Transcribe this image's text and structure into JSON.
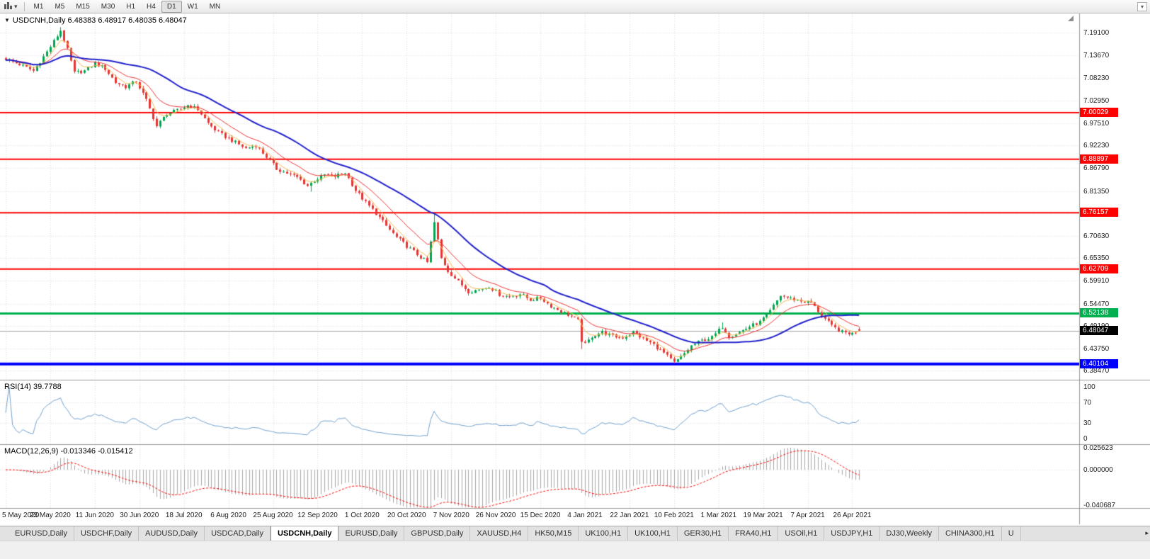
{
  "toolbar": {
    "timeframes": [
      "M1",
      "M5",
      "M15",
      "M30",
      "H1",
      "H4",
      "D1",
      "W1",
      "MN"
    ],
    "active_timeframe": "D1"
  },
  "chart": {
    "title": "USDCNH,Daily 6.48383 6.48917 6.48035 6.48047",
    "current_price": "6.48047",
    "y_ticks": [
      "7.19100",
      "7.13670",
      "7.08230",
      "7.02950",
      "6.97510",
      "6.92230",
      "6.86790",
      "6.81350",
      "6.76070",
      "6.70630",
      "6.65350",
      "6.59910",
      "6.54470",
      "6.49190",
      "6.43750",
      "6.38470"
    ],
    "x_labels": [
      "5 May 2020",
      "23 May 2020",
      "11 Jun 2020",
      "30 Jun 2020",
      "18 Jul 2020",
      "6 Aug 2020",
      "25 Aug 2020",
      "12 Sep 2020",
      "1 Oct 2020",
      "20 Oct 2020",
      "7 Nov 2020",
      "26 Nov 2020",
      "15 Dec 2020",
      "4 Jan 2021",
      "22 Jan 2021",
      "10 Feb 2021",
      "1 Mar 2021",
      "19 Mar 2021",
      "7 Apr 2021",
      "26 Apr 2021"
    ]
  },
  "indicators": {
    "rsi": {
      "label": "RSI(14) 39.7788",
      "period": 14,
      "value": "39.7788",
      "ticks": [
        "100",
        "70",
        "30",
        "0"
      ],
      "levels": [
        70,
        30
      ]
    },
    "macd": {
      "label": "MACD(12,26,9) -0.013346 -0.015412",
      "values": [
        "-0.013346",
        "-0.015412"
      ],
      "ticks": [
        {
          "text": "0.025623",
          "value": 0.025623
        },
        {
          "text": "0.000000",
          "value": 0
        },
        {
          "text": "-0.040687",
          "value": -0.040687
        }
      ]
    }
  },
  "chart_data": {
    "type": "candlestick",
    "symbol": "USDCNH",
    "timeframe": "Daily",
    "bar_count": 250,
    "price_axis_range": [
      6.365,
      7.235
    ],
    "rsi_range": [
      -12,
      112
    ],
    "macd_range": [
      -0.0445,
      0.0285
    ],
    "last_bar": {
      "open": 6.48383,
      "high": 6.48917,
      "low": 6.48035,
      "close": 6.48047
    },
    "close_anchors": [
      [
        0,
        7.128
      ],
      [
        4,
        7.115
      ],
      [
        8,
        7.1
      ],
      [
        12,
        7.145
      ],
      [
        16,
        7.196
      ],
      [
        18,
        7.15
      ],
      [
        20,
        7.095
      ],
      [
        23,
        7.1
      ],
      [
        26,
        7.118
      ],
      [
        29,
        7.105
      ],
      [
        32,
        7.072
      ],
      [
        35,
        7.062
      ],
      [
        38,
        7.075
      ],
      [
        41,
        7.03
      ],
      [
        44,
        6.968
      ],
      [
        47,
        6.998
      ],
      [
        50,
        7.005
      ],
      [
        53,
        7.018
      ],
      [
        56,
        7.008
      ],
      [
        59,
        6.975
      ],
      [
        62,
        6.952
      ],
      [
        66,
        6.934
      ],
      [
        70,
        6.915
      ],
      [
        73,
        6.922
      ],
      [
        76,
        6.895
      ],
      [
        79,
        6.866
      ],
      [
        82,
        6.856
      ],
      [
        85,
        6.846
      ],
      [
        88,
        6.826
      ],
      [
        90,
        6.838
      ],
      [
        93,
        6.852
      ],
      [
        96,
        6.848
      ],
      [
        99,
        6.858
      ],
      [
        102,
        6.815
      ],
      [
        105,
        6.786
      ],
      [
        108,
        6.76
      ],
      [
        111,
        6.73
      ],
      [
        114,
        6.703
      ],
      [
        117,
        6.682
      ],
      [
        120,
        6.662
      ],
      [
        123,
        6.643
      ],
      [
        125,
        6.738
      ],
      [
        127,
        6.653
      ],
      [
        129,
        6.623
      ],
      [
        132,
        6.597
      ],
      [
        135,
        6.574
      ],
      [
        138,
        6.578
      ],
      [
        141,
        6.586
      ],
      [
        144,
        6.567
      ],
      [
        147,
        6.561
      ],
      [
        150,
        6.568
      ],
      [
        153,
        6.554
      ],
      [
        156,
        6.558
      ],
      [
        159,
        6.539
      ],
      [
        162,
        6.527
      ],
      [
        165,
        6.514
      ],
      [
        167,
        6.504
      ],
      [
        168,
        6.457
      ],
      [
        169,
        6.447
      ],
      [
        171,
        6.467
      ],
      [
        174,
        6.477
      ],
      [
        177,
        6.467
      ],
      [
        180,
        6.464
      ],
      [
        183,
        6.477
      ],
      [
        186,
        6.461
      ],
      [
        189,
        6.447
      ],
      [
        192,
        6.427
      ],
      [
        195,
        6.404
      ],
      [
        197,
        6.417
      ],
      [
        200,
        6.444
      ],
      [
        203,
        6.457
      ],
      [
        206,
        6.464
      ],
      [
        209,
        6.49
      ],
      [
        211,
        6.467
      ],
      [
        214,
        6.477
      ],
      [
        217,
        6.49
      ],
      [
        220,
        6.501
      ],
      [
        223,
        6.527
      ],
      [
        226,
        6.564
      ],
      [
        229,
        6.557
      ],
      [
        232,
        6.551
      ],
      [
        235,
        6.547
      ],
      [
        238,
        6.517
      ],
      [
        241,
        6.491
      ],
      [
        244,
        6.477
      ],
      [
        247,
        6.473
      ],
      [
        249,
        6.48047
      ]
    ],
    "spike_bars": [
      {
        "index": 16,
        "extra_high": 0.005
      },
      {
        "index": 89,
        "extra_low": 0.01
      },
      {
        "index": 125,
        "extra_high": 0.014
      },
      {
        "index": 168,
        "extra_low": 0.012
      },
      {
        "index": 195,
        "extra_low": 0.004
      },
      {
        "index": 209,
        "extra_high": 0.013
      }
    ],
    "hlines": [
      {
        "value": 7.00029,
        "label": "7.00029",
        "color": "#FF0000",
        "width": 2
      },
      {
        "value": 6.88897,
        "label": "6.88897",
        "color": "#FF0000",
        "width": 2
      },
      {
        "value": 6.76157,
        "label": "6.76157",
        "color": "#FF0000",
        "width": 2
      },
      {
        "value": 6.62709,
        "label": "6.62709",
        "color": "#FF0000",
        "width": 2
      },
      {
        "value": 6.52138,
        "label": "6.52138",
        "color": "#00B050",
        "width": 3
      },
      {
        "value": 6.40104,
        "label": "6.40104",
        "color": "#0000FF",
        "width": 4
      }
    ],
    "moving_averages": [
      {
        "period": 5,
        "type": "ema",
        "color": "#F2B84B"
      },
      {
        "period": 13,
        "type": "ema",
        "color": "#EE3333"
      },
      {
        "period": 34,
        "type": "sma",
        "color": "#2020CC"
      }
    ]
  },
  "colors": {
    "up": "#00A651",
    "down": "#E53535",
    "grid": "#DCDCDC",
    "rsi": "#70A0CE",
    "macd_hist": "#A6A6A6",
    "macd_signal": "#FF0000",
    "current_line": "#A0A0A0",
    "separator": "#999999"
  },
  "tabs": [
    {
      "label": "EURUSD,Daily"
    },
    {
      "label": "USDCHF,Daily"
    },
    {
      "label": "AUDUSD,Daily"
    },
    {
      "label": "USDCAD,Daily"
    },
    {
      "label": "USDCNH,Daily",
      "active": true
    },
    {
      "label": "EURUSD,Daily"
    },
    {
      "label": "GBPUSD,Daily"
    },
    {
      "label": "XAUUSD,H4"
    },
    {
      "label": "HK50,M15"
    },
    {
      "label": "UK100,H1"
    },
    {
      "label": "UK100,H1"
    },
    {
      "label": "GER30,H1"
    },
    {
      "label": "FRA40,H1"
    },
    {
      "label": "USOil,H1"
    },
    {
      "label": "USDJPY,H1"
    },
    {
      "label": "DJ30,Weekly"
    },
    {
      "label": "CHINA300,H1"
    },
    {
      "label": "U"
    }
  ],
  "tab_scroll_icon": "▸"
}
